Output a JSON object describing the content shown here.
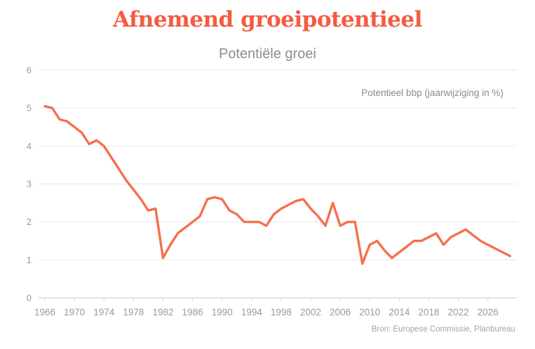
{
  "header": {
    "title": "Afnemend groeipotentieel",
    "subtitle": "Potentiële groei"
  },
  "footer": {
    "source": "Bron: Europese Commissie, Planbureau"
  },
  "chart_data": {
    "type": "line",
    "title": "Afnemend groeipotentieel",
    "subtitle": "Potentiële groei",
    "xlabel": "",
    "ylabel": "",
    "ylim": [
      0,
      6
    ],
    "yticks": [
      0,
      1,
      2,
      3,
      4,
      5,
      6
    ],
    "xticks": [
      1966,
      1970,
      1974,
      1978,
      1982,
      1986,
      1990,
      1994,
      1998,
      2002,
      2006,
      2010,
      2014,
      2018,
      2022,
      2026
    ],
    "grid": "horizontal",
    "legend_position": "top-right",
    "source": "Bron: Europese Commissie, Planbureau",
    "series": [
      {
        "name": "Potentieel bbp (jaarwijziging in %)",
        "x": [
          1966,
          1967,
          1968,
          1969,
          1970,
          1971,
          1972,
          1973,
          1974,
          1975,
          1976,
          1977,
          1978,
          1979,
          1980,
          1981,
          1982,
          1983,
          1984,
          1985,
          1986,
          1987,
          1988,
          1989,
          1990,
          1991,
          1992,
          1993,
          1994,
          1995,
          1996,
          1997,
          1998,
          1999,
          2000,
          2001,
          2002,
          2003,
          2004,
          2005,
          2006,
          2007,
          2008,
          2009,
          2010,
          2011,
          2012,
          2013,
          2014,
          2015,
          2016,
          2017,
          2018,
          2019,
          2020,
          2021,
          2022,
          2023,
          2024,
          2025,
          2026,
          2027,
          2028,
          2029
        ],
        "values": [
          5.05,
          5.0,
          4.7,
          4.65,
          4.5,
          4.35,
          4.05,
          4.15,
          4.0,
          3.7,
          3.4,
          3.1,
          2.85,
          2.6,
          2.3,
          2.35,
          1.05,
          1.4,
          1.7,
          1.85,
          2.0,
          2.15,
          2.6,
          2.65,
          2.6,
          2.3,
          2.2,
          2.0,
          2.0,
          2.0,
          1.9,
          2.2,
          2.35,
          2.45,
          2.55,
          2.6,
          2.35,
          2.15,
          1.9,
          2.5,
          1.9,
          2.0,
          2.0,
          0.9,
          1.4,
          1.5,
          1.25,
          1.05,
          1.2,
          1.35,
          1.5,
          1.5,
          1.6,
          1.7,
          1.4,
          1.6,
          1.7,
          1.8,
          1.65,
          1.5,
          1.4,
          1.3,
          1.2,
          1.1
        ]
      }
    ],
    "colors": {
      "line": "#F4714E",
      "title": "#F25C40",
      "grid": "#ececec",
      "axis": "#d2d2d2",
      "tick_label": "#9a9a9a"
    }
  }
}
